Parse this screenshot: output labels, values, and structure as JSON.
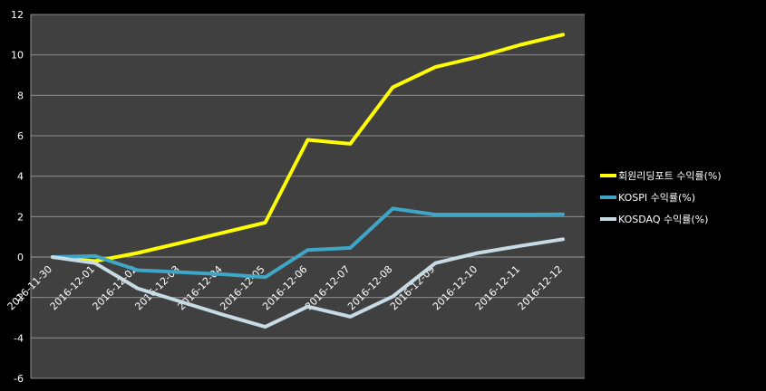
{
  "chart_data": {
    "type": "line",
    "title": "",
    "xlabel": "",
    "ylabel": "",
    "categories": [
      "2016-11-30",
      "2016-12-01",
      "2016-12-02",
      "2016-12-03",
      "2016-12-04",
      "2016-12-05",
      "2016-12-06",
      "2016-12-07",
      "2016-12-08",
      "2016-12-09",
      "2016-12-10",
      "2016-12-11",
      "2016-12-12"
    ],
    "ylim": [
      -6,
      12
    ],
    "yticks": [
      -6,
      -4,
      -2,
      0,
      2,
      4,
      6,
      8,
      10,
      12
    ],
    "grid": true,
    "legend_position": "right",
    "plot_background": "#404040",
    "gridline_color": "#8c8c8c",
    "series": [
      {
        "name": "회원리딩포트 수익률(%)",
        "color": "#ffff00",
        "values": [
          0.0,
          -0.2,
          0.2,
          0.7,
          1.2,
          1.7,
          5.8,
          5.6,
          8.4,
          9.4,
          9.9,
          10.5,
          11.0
        ]
      },
      {
        "name": "KOSPI 수익률(%)",
        "color": "#3fa6c8",
        "values": [
          0.0,
          0.05,
          -0.65,
          -0.75,
          -0.85,
          -1.0,
          0.35,
          0.45,
          2.4,
          2.1,
          2.1,
          2.1,
          2.12
        ]
      },
      {
        "name": "KOSDAQ 수익률(%)",
        "color": "#c7dbe6",
        "values": [
          0.0,
          -0.3,
          -1.55,
          -2.2,
          -2.85,
          -3.45,
          -2.45,
          -2.95,
          -1.95,
          -0.3,
          0.2,
          0.55,
          0.88
        ]
      }
    ]
  }
}
